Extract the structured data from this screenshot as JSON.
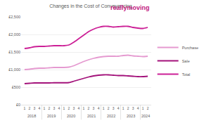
{
  "chart_data": {
    "type": "line",
    "title": "Changes in the Cost of Conveyancing",
    "logo": "reallymoving",
    "categories": [
      "1",
      "2",
      "3",
      "4",
      "1",
      "2",
      "3",
      "4",
      "1",
      "2",
      "3",
      "4",
      "1",
      "2",
      "3",
      "4",
      "1",
      "2",
      "3",
      "4",
      "1",
      "2",
      "3",
      "4",
      "1",
      "2"
    ],
    "category_groups": [
      {
        "label": "2018",
        "size": 4
      },
      {
        "label": "2019",
        "size": 4
      },
      {
        "label": "2020",
        "size": 4
      },
      {
        "label": "2021",
        "size": 4
      },
      {
        "label": "2022",
        "size": 4
      },
      {
        "label": "2023",
        "size": 4
      },
      {
        "label": "2024",
        "size": 2
      }
    ],
    "series": [
      {
        "name": "Purchase",
        "color": "#e59ad0",
        "values": [
          1000,
          1010,
          1030,
          1040,
          1040,
          1050,
          1060,
          1060,
          1060,
          1070,
          1110,
          1170,
          1230,
          1280,
          1320,
          1350,
          1370,
          1380,
          1380,
          1380,
          1400,
          1410,
          1390,
          1380,
          1370,
          1380
        ]
      },
      {
        "name": "Sale",
        "color": "#a3127a",
        "values": [
          600,
          610,
          620,
          620,
          620,
          620,
          625,
          625,
          625,
          630,
          670,
          710,
          750,
          790,
          820,
          840,
          850,
          850,
          840,
          830,
          830,
          820,
          810,
          800,
          800,
          810
        ]
      },
      {
        "name": "Total",
        "color": "#cc1f96",
        "values": [
          1600,
          1620,
          1650,
          1660,
          1660,
          1670,
          1680,
          1680,
          1680,
          1700,
          1780,
          1880,
          1980,
          2080,
          2150,
          2200,
          2230,
          2230,
          2210,
          2220,
          2230,
          2230,
          2200,
          2180,
          2170,
          2200
        ]
      }
    ],
    "ylim": [
      0,
      2500
    ],
    "yticks": [
      {
        "value": 0,
        "label": "£0"
      },
      {
        "value": 500,
        "label": "£500"
      },
      {
        "value": 1000,
        "label": "£1,000"
      },
      {
        "value": 1500,
        "label": "£1,500"
      },
      {
        "value": 2000,
        "label": "£2,000"
      },
      {
        "value": 2500,
        "label": "£2,500"
      }
    ],
    "grid": true,
    "legend": "right"
  }
}
